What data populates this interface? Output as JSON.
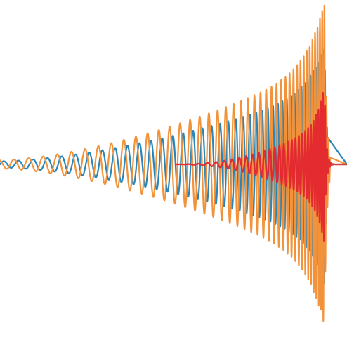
{
  "image": {
    "subject": "chirp-waveform",
    "background_color": "#ffffff",
    "colors": {
      "blue_wave": "#2a86b8",
      "orange_wave": "#f2923a",
      "red_wave": "#e3262f",
      "center_line": "#c9473a"
    },
    "waves": [
      {
        "name": "blue",
        "color_key": "blue_wave"
      },
      {
        "name": "orange",
        "color_key": "orange_wave"
      },
      {
        "name": "red",
        "color_key": "red_wave"
      }
    ]
  }
}
